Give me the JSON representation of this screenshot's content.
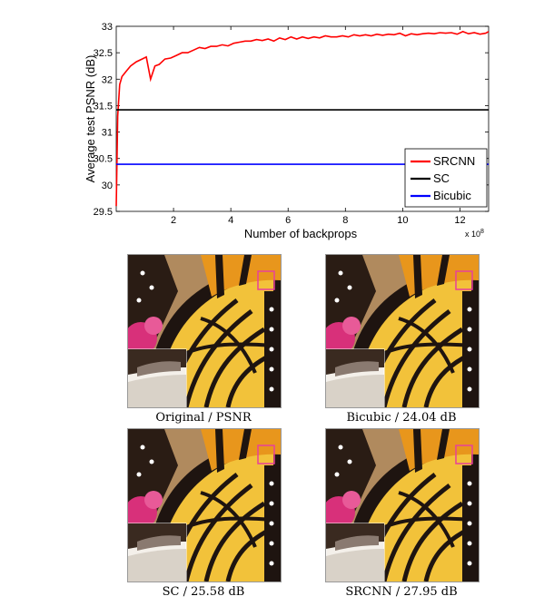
{
  "chart_data": {
    "type": "line",
    "xlabel": "Number of backprops",
    "ylabel": "Average test PSNR (dB)",
    "x_exponent_label": "x 10",
    "x_exponent_power": "8",
    "xlim": [
      0,
      13
    ],
    "ylim": [
      29.5,
      33
    ],
    "xticks": [
      2,
      4,
      6,
      8,
      10,
      12
    ],
    "yticks": [
      29.5,
      30,
      30.5,
      31,
      31.5,
      32,
      32.5,
      33
    ],
    "legend_position": "bottom-right",
    "series": [
      {
        "name": "SRCNN",
        "color": "#ff0000",
        "x": [
          0,
          0.05,
          0.12,
          0.2,
          0.35,
          0.5,
          0.7,
          0.9,
          1.05,
          1.2,
          1.35,
          1.5,
          1.7,
          1.9,
          2.1,
          2.3,
          2.5,
          2.7,
          2.9,
          3.1,
          3.3,
          3.5,
          3.7,
          3.9,
          4.1,
          4.3,
          4.5,
          4.7,
          4.9,
          5.1,
          5.3,
          5.5,
          5.7,
          5.9,
          6.1,
          6.3,
          6.5,
          6.7,
          6.9,
          7.1,
          7.3,
          7.5,
          7.7,
          7.9,
          8.1,
          8.3,
          8.5,
          8.7,
          8.9,
          9.1,
          9.3,
          9.5,
          9.7,
          9.9,
          10.1,
          10.3,
          10.5,
          10.7,
          10.9,
          11.1,
          11.3,
          11.5,
          11.7,
          11.9,
          12.1,
          12.3,
          12.5,
          12.7,
          12.9,
          13.0
        ],
        "y": [
          29.6,
          31.3,
          31.9,
          32.05,
          32.15,
          32.25,
          32.33,
          32.38,
          32.42,
          32.0,
          32.25,
          32.28,
          32.38,
          32.4,
          32.45,
          32.5,
          32.5,
          32.55,
          32.6,
          32.58,
          32.62,
          32.62,
          32.65,
          32.63,
          32.68,
          32.7,
          32.72,
          32.72,
          32.75,
          32.73,
          32.76,
          32.72,
          32.78,
          32.75,
          32.8,
          32.76,
          32.8,
          32.77,
          32.8,
          32.78,
          32.82,
          32.8,
          32.8,
          32.82,
          32.8,
          32.84,
          32.82,
          32.84,
          32.82,
          32.85,
          32.83,
          32.85,
          32.84,
          32.87,
          32.82,
          32.86,
          32.84,
          32.86,
          32.87,
          32.86,
          32.88,
          32.87,
          32.88,
          32.85,
          32.9,
          32.86,
          32.88,
          32.85,
          32.87,
          32.9
        ]
      },
      {
        "name": "SC",
        "color": "#000000",
        "x": [
          0,
          13
        ],
        "y": [
          31.42,
          31.42
        ]
      },
      {
        "name": "Bicubic",
        "color": "#0000ff",
        "x": [
          0,
          13
        ],
        "y": [
          30.39,
          30.39
        ]
      }
    ]
  },
  "panels": [
    {
      "caption": "Original / PSNR"
    },
    {
      "caption": "Bicubic / 24.04 dB"
    },
    {
      "caption": "SC / 25.58 dB"
    },
    {
      "caption": "SRCNN / 27.95 dB"
    }
  ],
  "colors": {
    "wing_orange": "#e8961c",
    "wing_yellow": "#f2c23a",
    "vein_dark": "#1e1410",
    "flower_pink": "#d8307a",
    "background_tan": "#b08a5e",
    "zoom_box": "#e8409a"
  }
}
